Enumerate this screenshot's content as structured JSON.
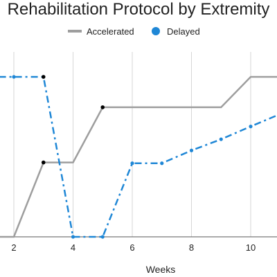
{
  "chart_data": {
    "type": "line",
    "title": "Rehabilitation Protocol by Extremity",
    "xlabel": "Weeks",
    "ylabel": "",
    "xlim": [
      1.5,
      10.9
    ],
    "ylim": [
      0,
      1
    ],
    "x_ticks": [
      2,
      4,
      6,
      8,
      10
    ],
    "grid": "vertical",
    "legend": {
      "position": "top"
    },
    "series": [
      {
        "name": "Accelerated",
        "color": "#9e9e9e",
        "style": "solid",
        "points": [
          {
            "x": 1.5,
            "y": 0.0
          },
          {
            "x": 2,
            "y": 0.0
          },
          {
            "x": 3,
            "y": 0.465
          },
          {
            "x": 4,
            "y": 0.465
          },
          {
            "x": 5,
            "y": 0.81
          },
          {
            "x": 6,
            "y": 0.81
          },
          {
            "x": 7,
            "y": 0.81
          },
          {
            "x": 8,
            "y": 0.81
          },
          {
            "x": 9,
            "y": 0.81
          },
          {
            "x": 10,
            "y": 1.0
          },
          {
            "x": 10.9,
            "y": 1.0
          }
        ],
        "markers": [
          {
            "x": 3,
            "y": 0.465
          },
          {
            "x": 5,
            "y": 0.81
          }
        ]
      },
      {
        "name": "Delayed",
        "color": "#1f87d6",
        "style": "dashdot",
        "points": [
          {
            "x": 1.5,
            "y": 1.0
          },
          {
            "x": 2,
            "y": 1.0
          },
          {
            "x": 3,
            "y": 1.0
          },
          {
            "x": 4,
            "y": 0.0
          },
          {
            "x": 5,
            "y": 0.0
          },
          {
            "x": 6,
            "y": 0.46
          },
          {
            "x": 7,
            "y": 0.46
          },
          {
            "x": 8,
            "y": 0.54
          },
          {
            "x": 9,
            "y": 0.61
          },
          {
            "x": 10,
            "y": 0.69
          },
          {
            "x": 10.9,
            "y": 0.76
          }
        ],
        "markers": [
          {
            "x": 3,
            "y": 1.0
          }
        ]
      }
    ]
  }
}
